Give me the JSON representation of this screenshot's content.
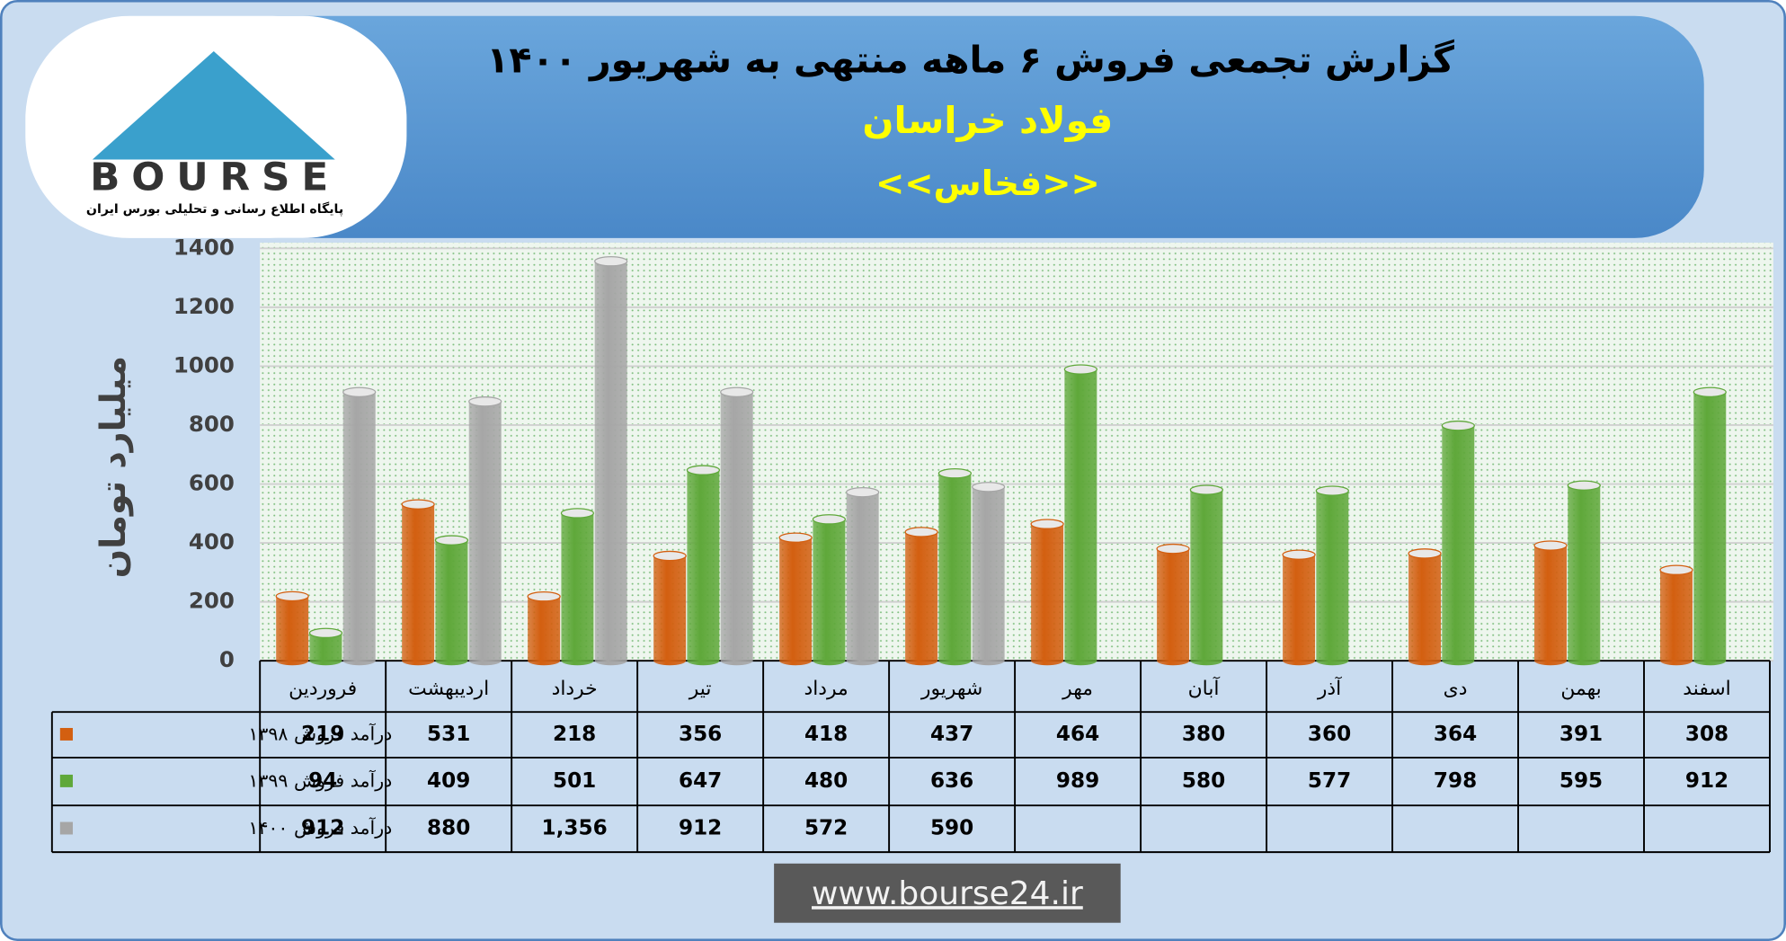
{
  "header": {
    "logo_text": "BOURSE",
    "logo_caption": "پایگاه اطلاع رسانی و تحلیلی بورس ایران",
    "footer": "www.bourse24.ir"
  },
  "chart_data": {
    "type": "bar",
    "title": "گزارش تجمعی فروش ۶ ماهه منتهی به شهریور ۱۴۰۰",
    "subtitle": "فولاد خراسان",
    "symbol": "<<فخاس>>",
    "y_label": "میلیارد تومان",
    "categories": [
      "فروردین",
      "اردیبهشت",
      "خرداد",
      "تیر",
      "مرداد",
      "شهریور",
      "مهر",
      "آبان",
      "آذر",
      "دی",
      "بهمن",
      "اسفند"
    ],
    "series": [
      {
        "name": "درآمد فروش ۱۳۹۸",
        "color": "#d35f10",
        "values": [
          219,
          531,
          218,
          356,
          418,
          437,
          464,
          380,
          360,
          364,
          391,
          308
        ]
      },
      {
        "name": "درآمد فروش ۱۳۹۹",
        "color": "#5fa83a",
        "values": [
          94,
          409,
          501,
          647,
          480,
          636,
          989,
          580,
          577,
          798,
          595,
          912
        ]
      },
      {
        "name": "درآمد فروش ۱۴۰۰",
        "color": "#a6a6a6",
        "values": [
          912,
          880,
          1356,
          912,
          572,
          590,
          null,
          null,
          null,
          null,
          null,
          null
        ],
        "value_labels": [
          "912",
          "880",
          "1,356",
          "912",
          "572",
          "590",
          null,
          null,
          null,
          null,
          null,
          null
        ]
      }
    ],
    "ylim": [
      0,
      1400
    ],
    "yticks": [
      0,
      200,
      400,
      600,
      800,
      1000,
      1200,
      1400
    ],
    "grid": true
  }
}
